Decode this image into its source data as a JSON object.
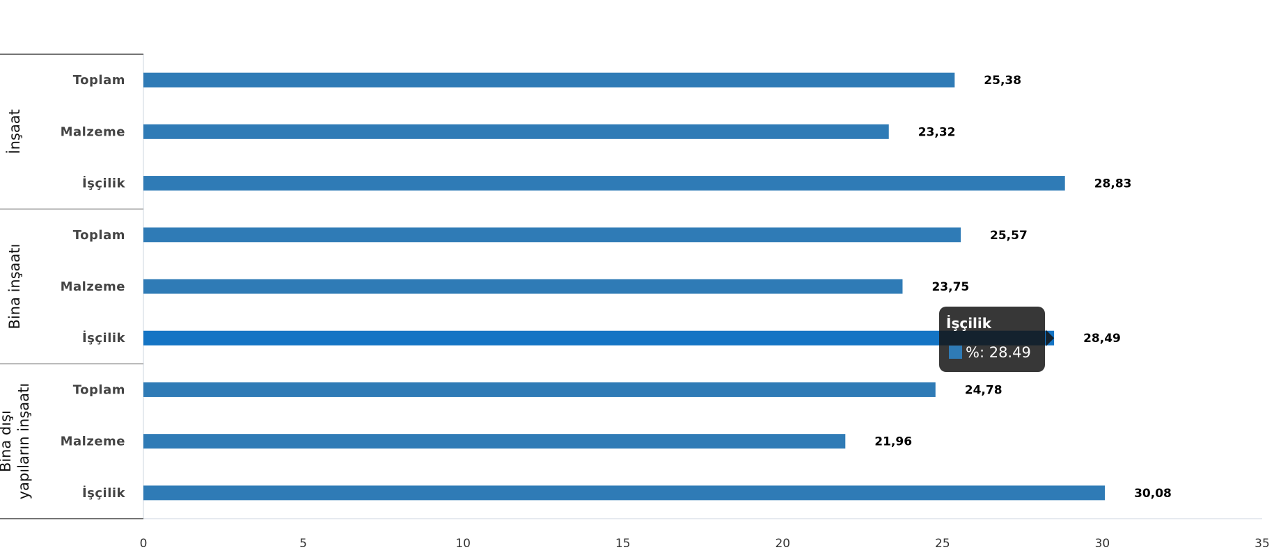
{
  "chart_data": {
    "type": "bar",
    "orientation": "horizontal",
    "groups": [
      {
        "name": "İnşaat",
        "categories": [
          "Toplam",
          "Malzeme",
          "İşçilik"
        ],
        "values": [
          25.38,
          23.32,
          28.83
        ],
        "labels": [
          "25,38",
          "23,32",
          "28,83"
        ]
      },
      {
        "name": "Bina inşaatı",
        "categories": [
          "Toplam",
          "Malzeme",
          "İşçilik"
        ],
        "values": [
          25.57,
          23.75,
          28.49
        ],
        "labels": [
          "25,57",
          "23,75",
          "28,49"
        ]
      },
      {
        "name": "Bina dışı yapıların inşaatı",
        "name_lines": [
          "Bina dışı",
          "yapıların inşaatı"
        ],
        "categories": [
          "Toplam",
          "Malzeme",
          "İşçilik"
        ],
        "values": [
          24.78,
          21.96,
          30.08
        ],
        "labels": [
          "24,78",
          "21,96",
          "30,08"
        ]
      }
    ],
    "xlim": [
      0,
      35
    ],
    "xticks": [
      "0",
      "5",
      "10",
      "15",
      "20",
      "25",
      "30",
      "35"
    ],
    "grid": false,
    "bar_color": "#2f7bb6",
    "highlight_color": "#1474c4"
  },
  "tooltip": {
    "title": "İşçilik",
    "text": "%: 28.49",
    "group_index": 1,
    "category_index": 2
  }
}
